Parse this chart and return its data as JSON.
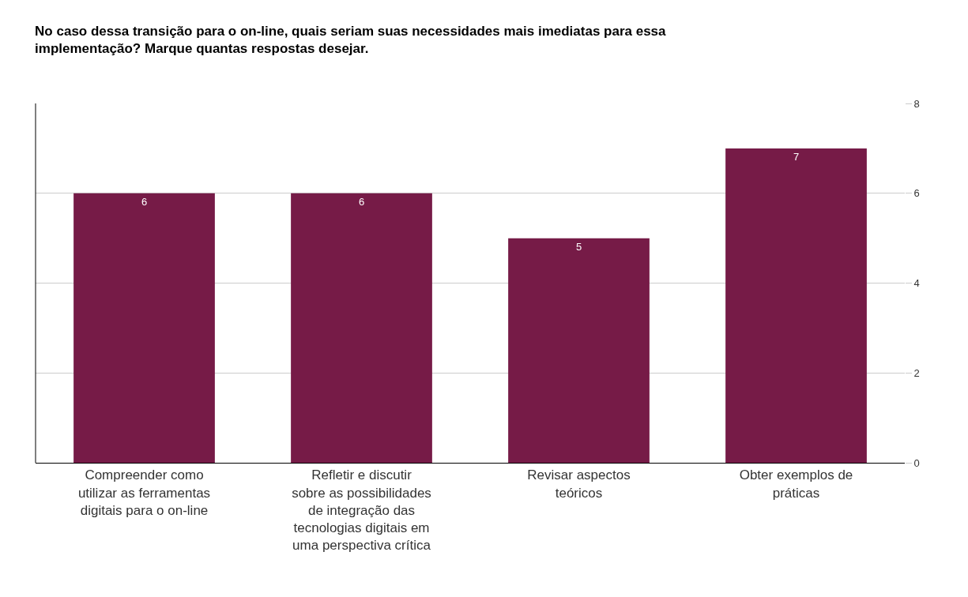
{
  "chart_data": {
    "type": "bar",
    "title": "No caso dessa transição para o on-line, quais seriam suas necessidades mais imediatas para essa implementação? Marque quantas respostas desejar.",
    "categories": [
      "Compreender como utilizar as ferramentas digitais para o on-line",
      "Refletir e discutir sobre as possibilidades de integração das tecnologias digitais em uma perspectiva crítica",
      "Revisar aspectos teóricos",
      "Obter exemplos de práticas"
    ],
    "values": [
      6,
      6,
      5,
      7
    ],
    "color": "#761b47",
    "ylim": [
      0,
      8
    ],
    "yticks": [
      0,
      2,
      4,
      6,
      8
    ],
    "grid": "y",
    "data_labels": true
  }
}
